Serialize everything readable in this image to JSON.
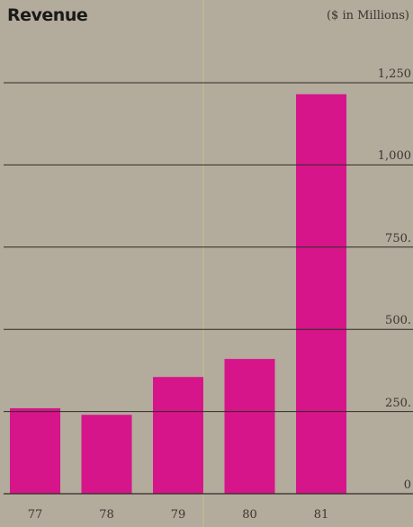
{
  "chart_data": {
    "type": "bar",
    "title": "Revenue",
    "unit_label": "($ in Millions)",
    "categories": [
      "77",
      "78",
      "79",
      "80",
      "81"
    ],
    "values": [
      260,
      240,
      355,
      410,
      1215
    ],
    "ylim": [
      0,
      1250
    ],
    "yticks": [
      0,
      250,
      500,
      750,
      1000,
      1250
    ],
    "ytick_labels": [
      "0",
      "250.",
      "500.",
      "750.",
      "1,000",
      "1,250"
    ],
    "grid": true,
    "bar_color": "#d6158a"
  }
}
